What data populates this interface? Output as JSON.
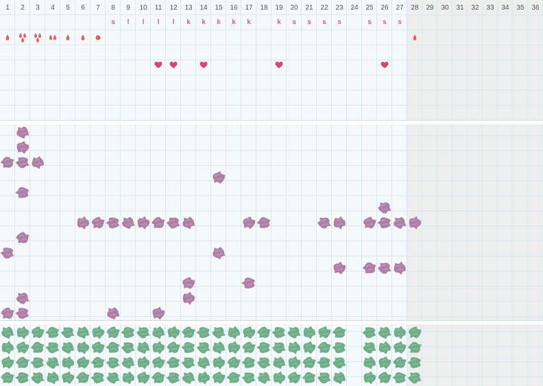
{
  "colors": {
    "background": "#f5f9fb",
    "future_background": "#eeeeee",
    "grid_line": "#dbe9ef",
    "day_label": "#555555",
    "tag_text": "#b0708e",
    "drop": "#e36060",
    "heart": "#d2486a",
    "purple_blot": "#b07fa7",
    "green_blot": "#6fae88"
  },
  "days": [
    "1",
    "2",
    "3",
    "4",
    "5",
    "6",
    "7",
    "8",
    "9",
    "10",
    "11",
    "12",
    "13",
    "14",
    "15",
    "16",
    "17",
    "18",
    "19",
    "20",
    "21",
    "22",
    "23",
    "24",
    "25",
    "26",
    "27",
    "28",
    "29",
    "30",
    "31",
    "32",
    "33",
    "34",
    "35",
    "36"
  ],
  "current_day_count": 27,
  "day_tags": [
    {
      "day": 8,
      "text": "s"
    },
    {
      "day": 9,
      "text": "l"
    },
    {
      "day": 10,
      "text": "l"
    },
    {
      "day": 11,
      "text": "l"
    },
    {
      "day": 12,
      "text": "l"
    },
    {
      "day": 13,
      "text": "k"
    },
    {
      "day": 14,
      "text": "k"
    },
    {
      "day": 15,
      "text": "k"
    },
    {
      "day": 16,
      "text": "k"
    },
    {
      "day": 17,
      "text": "k"
    },
    {
      "day": 19,
      "text": "k"
    },
    {
      "day": 20,
      "text": "s"
    },
    {
      "day": 21,
      "text": "s"
    },
    {
      "day": 22,
      "text": "s"
    },
    {
      "day": 23,
      "text": "s"
    },
    {
      "day": 25,
      "text": "s"
    },
    {
      "day": 26,
      "text": "s"
    },
    {
      "day": 27,
      "text": "s"
    }
  ],
  "drop_marks": [
    {
      "day": 1,
      "kind": "single"
    },
    {
      "day": 2,
      "kind": "triple"
    },
    {
      "day": 3,
      "kind": "triple"
    },
    {
      "day": 4,
      "kind": "double"
    },
    {
      "day": 5,
      "kind": "single"
    },
    {
      "day": 6,
      "kind": "single"
    },
    {
      "day": 7,
      "kind": "dot"
    },
    {
      "day": 28,
      "kind": "single"
    }
  ],
  "heart_days": [
    11,
    12,
    14,
    19,
    26
  ],
  "purple_entries": [
    {
      "day": 2,
      "row": 0
    },
    {
      "day": 2,
      "row": 1
    },
    {
      "day": 1,
      "row": 2
    },
    {
      "day": 2,
      "row": 2
    },
    {
      "day": 3,
      "row": 2
    },
    {
      "day": 15,
      "row": 3
    },
    {
      "day": 2,
      "row": 4
    },
    {
      "day": 26,
      "row": 5
    },
    {
      "day": 6,
      "row": 6
    },
    {
      "day": 7,
      "row": 6
    },
    {
      "day": 8,
      "row": 6
    },
    {
      "day": 9,
      "row": 6
    },
    {
      "day": 10,
      "row": 6
    },
    {
      "day": 11,
      "row": 6
    },
    {
      "day": 12,
      "row": 6
    },
    {
      "day": 13,
      "row": 6
    },
    {
      "day": 17,
      "row": 6
    },
    {
      "day": 18,
      "row": 6
    },
    {
      "day": 22,
      "row": 6
    },
    {
      "day": 23,
      "row": 6
    },
    {
      "day": 25,
      "row": 6
    },
    {
      "day": 26,
      "row": 6
    },
    {
      "day": 27,
      "row": 6
    },
    {
      "day": 28,
      "row": 6
    },
    {
      "day": 2,
      "row": 7
    },
    {
      "day": 1,
      "row": 8
    },
    {
      "day": 15,
      "row": 8
    },
    {
      "day": 23,
      "row": 9
    },
    {
      "day": 25,
      "row": 9
    },
    {
      "day": 26,
      "row": 9
    },
    {
      "day": 27,
      "row": 9
    },
    {
      "day": 13,
      "row": 10
    },
    {
      "day": 17,
      "row": 10
    },
    {
      "day": 2,
      "row": 11
    },
    {
      "day": 13,
      "row": 11
    },
    {
      "day": 1,
      "row": 12
    },
    {
      "day": 2,
      "row": 12
    },
    {
      "day": 8,
      "row": 12
    },
    {
      "day": 11,
      "row": 12
    }
  ],
  "green_days": [
    1,
    2,
    3,
    4,
    5,
    6,
    7,
    8,
    9,
    10,
    11,
    12,
    13,
    14,
    15,
    16,
    17,
    18,
    19,
    20,
    21,
    22,
    23,
    25,
    26,
    27,
    28
  ],
  "green_row_count": 4
}
